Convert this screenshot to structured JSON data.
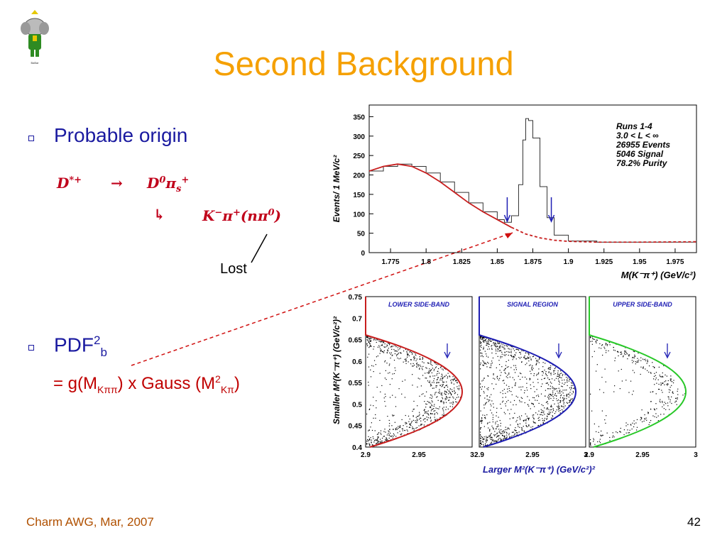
{
  "title": "Second Background",
  "bullets": [
    {
      "text": "Probable origin"
    },
    {
      "text": "PDF",
      "sup": "2",
      "sub": "b"
    }
  ],
  "decay": {
    "parent": "D*+",
    "arrow": "→",
    "daughters": "D0πs+",
    "sub_arrow": "↳",
    "final": "K−π+(nπ0)"
  },
  "lost_label": "Lost",
  "formula": {
    "prefix": "= g(M",
    "sub1": "Kππ",
    "middle": ") x Gauss (M",
    "sup": "2",
    "sub2": "Kπ",
    "suffix": ")"
  },
  "footer": {
    "left": "Charm AWG, Mar, 2007",
    "page": "42"
  },
  "colors": {
    "title": "#f5a000",
    "bullet_text": "#1a1aa0",
    "equation": "#c0001a",
    "fit_red": "#c81e1e",
    "fit_blue": "#1e1eb4",
    "fit_green": "#28c828"
  },
  "chart_data": [
    {
      "type": "line",
      "title": "",
      "xlabel": "M(K⁻π⁺)  (GeV/c²)",
      "ylabel": "Events/  1 MeV/c²",
      "xlim": [
        1.76,
        1.99
      ],
      "ylim": [
        0,
        380
      ],
      "x_ticks": [
        "1.775",
        "1.8",
        "1.825",
        "1.85",
        "1.875",
        "1.9",
        "1.925",
        "1.95",
        "1.975"
      ],
      "y_ticks": [
        "0",
        "50",
        "100",
        "150",
        "200",
        "250",
        "300",
        "350"
      ],
      "annotations": [
        "Runs 1-4",
        "3.0 < L < ∞",
        "26955 Events",
        "5046 Signal",
        "78.2% Purity"
      ],
      "series": [
        {
          "x": [
            1.76,
            1.77,
            1.78,
            1.79,
            1.8,
            1.81,
            1.82,
            1.83,
            1.84,
            1.85,
            1.855,
            1.86,
            1.865,
            1.868,
            1.87,
            1.872,
            1.875,
            1.88,
            1.885,
            1.89,
            1.9,
            1.92,
            1.95,
            1.99
          ],
          "y": [
            210,
            222,
            228,
            222,
            205,
            182,
            155,
            128,
            105,
            85,
            78,
            95,
            175,
            290,
            345,
            340,
            295,
            170,
            90,
            45,
            30,
            27,
            27,
            28
          ]
        },
        {
          "x": [
            1.76,
            1.77,
            1.78,
            1.79,
            1.8,
            1.81,
            1.82,
            1.83,
            1.84,
            1.85,
            1.86
          ],
          "y": [
            210,
            222,
            228,
            222,
            205,
            182,
            155,
            128,
            105,
            85,
            65
          ]
        },
        {
          "x": [
            1.86,
            1.87,
            1.88,
            1.89,
            1.9,
            1.92,
            1.95,
            1.99
          ],
          "y": [
            65,
            48,
            38,
            32,
            29,
            27,
            27,
            28
          ]
        }
      ],
      "markers_x": [
        1.857,
        1.888
      ]
    },
    {
      "type": "scatter",
      "xlabel": "Larger M²(K⁻π⁺)  (GeV/c²)²",
      "ylabel": "Smaller M²(K⁻π⁺)  (GeV/c²)²",
      "ylim": [
        0.4,
        0.75
      ],
      "y_ticks": [
        "0.4",
        "0.45",
        "0.5",
        "0.55",
        "0.6",
        "0.65",
        "0.7",
        "0.75"
      ],
      "panels": [
        {
          "name": "LOWER SIDE-BAND",
          "x_ticks": [
            "2.9",
            "2.95",
            "3"
          ],
          "color": "#c81e1e"
        },
        {
          "name": "SIGNAL REGION",
          "x_ticks": [
            "2.9",
            "2.95",
            "3"
          ],
          "color": "#1e1eb4"
        },
        {
          "name": "UPPER SIDE-BAND",
          "x_ticks": [
            "2.9",
            "2.95",
            "3"
          ],
          "color": "#28c828"
        }
      ]
    }
  ]
}
